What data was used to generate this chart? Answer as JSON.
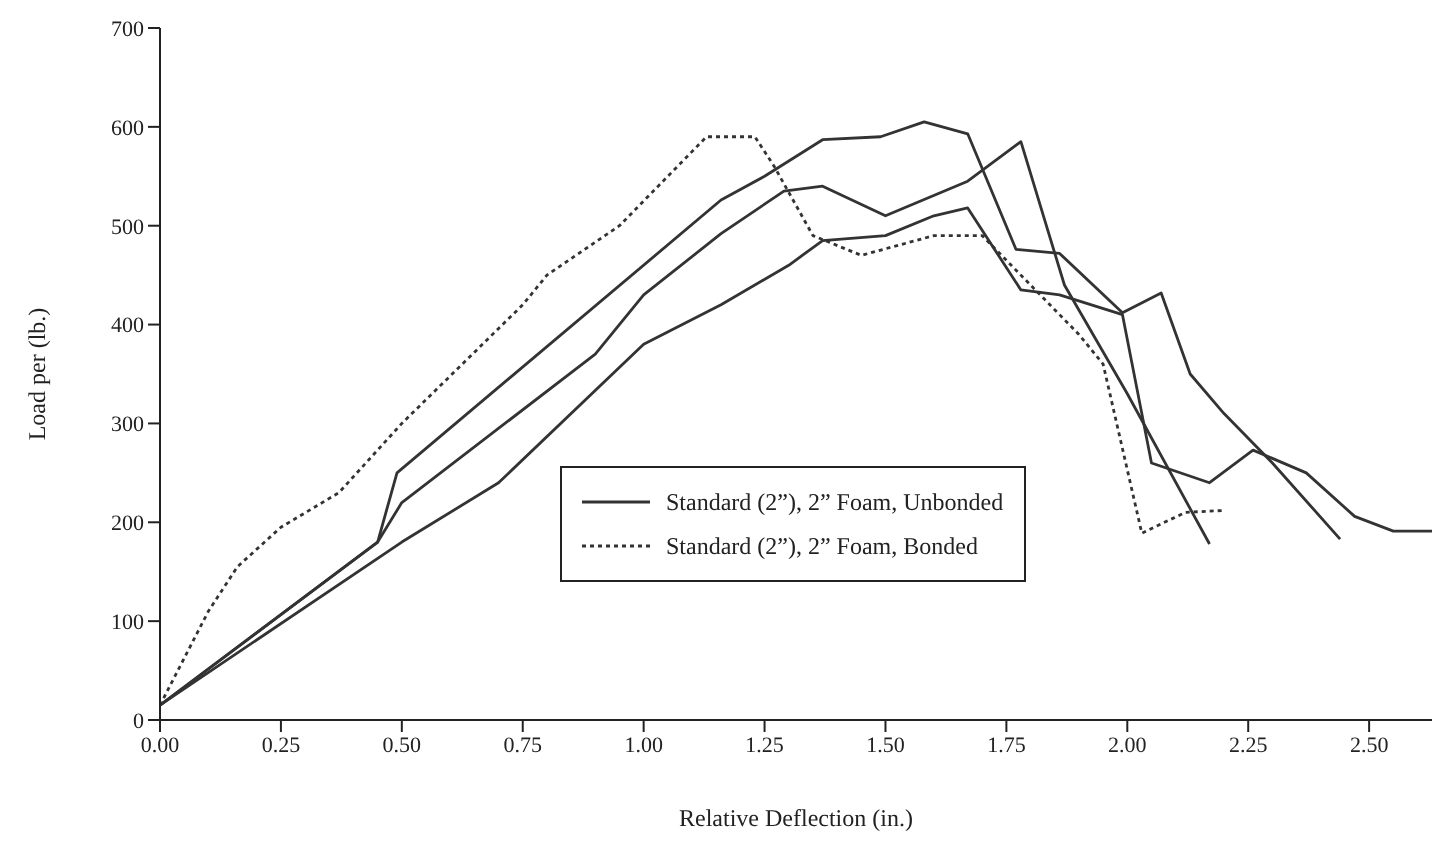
{
  "chart_data": {
    "type": "line",
    "xlabel": "Relative Deflection (in.)",
    "ylabel": "Load per (lb.)",
    "xlim": [
      0,
      2.63
    ],
    "xticks": [
      {
        "value": 0,
        "label": "0.00"
      },
      {
        "value": 0.25,
        "label": "0.25"
      },
      {
        "value": 0.5,
        "label": "0.50"
      },
      {
        "value": 0.75,
        "label": "0.75"
      },
      {
        "value": 1,
        "label": "1.00"
      },
      {
        "value": 1.25,
        "label": "1.25"
      },
      {
        "value": 1.5,
        "label": "1.50"
      },
      {
        "value": 1.75,
        "label": "1.75"
      },
      {
        "value": 2,
        "label": "2.00"
      },
      {
        "value": 2.25,
        "label": "2.25"
      },
      {
        "value": 2.5,
        "label": "2.50"
      }
    ],
    "ylim": [
      0,
      700
    ],
    "yticks": [
      0,
      100,
      200,
      300,
      400,
      500,
      600,
      700
    ],
    "legend": "center",
    "marker": "none",
    "series": [
      {
        "name": "Standard (2”), 2” Foam, Unbonded",
        "color": "#333333",
        "line_style": "solid",
        "x": [
          0,
          0.45,
          0.49,
          1.16,
          1.25,
          1.37,
          1.49,
          1.58,
          1.67,
          1.77,
          1.86,
          1.99,
          2.07,
          2.13,
          2.2,
          2.3,
          2.44
        ],
        "values": [
          15,
          180,
          250,
          526,
          550,
          587,
          590,
          605,
          593,
          476,
          472,
          412,
          432,
          350,
          310,
          260,
          183
        ]
      },
      {
        "color": "#333333",
        "line_style": "solid",
        "x": [
          0,
          0.45,
          0.5,
          0.9,
          1,
          1.16,
          1.29,
          1.37,
          1.5,
          1.67,
          1.78,
          1.87,
          2,
          2.17
        ],
        "values": [
          15,
          180,
          220,
          370,
          430,
          492,
          535,
          540,
          510,
          545,
          585,
          440,
          330,
          178
        ]
      },
      {
        "color": "#333333",
        "line_style": "solid",
        "x": [
          0,
          0.5,
          0.7,
          1,
          1.16,
          1.3,
          1.37,
          1.5,
          1.6,
          1.67,
          1.78,
          1.86,
          1.99,
          2.05,
          2.17,
          2.26,
          2.37,
          2.47,
          2.55,
          2.63
        ],
        "values": [
          15,
          180,
          240,
          380,
          420,
          460,
          485,
          490,
          510,
          518,
          435,
          430,
          410,
          260,
          240,
          273,
          250,
          206,
          191,
          191
        ]
      },
      {
        "name": "Standard (2”), 2” Foam, Bonded",
        "color": "#333333",
        "line_style": "dotted",
        "x": [
          0,
          0.1,
          0.16,
          0.25,
          0.37,
          0.5,
          0.75,
          0.8,
          0.95,
          1.05,
          1.13,
          1.23,
          1.27,
          1.35,
          1.45,
          1.6,
          1.7,
          1.78,
          1.9,
          1.95,
          2.03,
          2.12,
          2.2
        ],
        "values": [
          15,
          110,
          155,
          195,
          230,
          300,
          420,
          450,
          500,
          550,
          590,
          590,
          560,
          490,
          470,
          490,
          490,
          450,
          390,
          360,
          189,
          210,
          212
        ]
      }
    ]
  }
}
